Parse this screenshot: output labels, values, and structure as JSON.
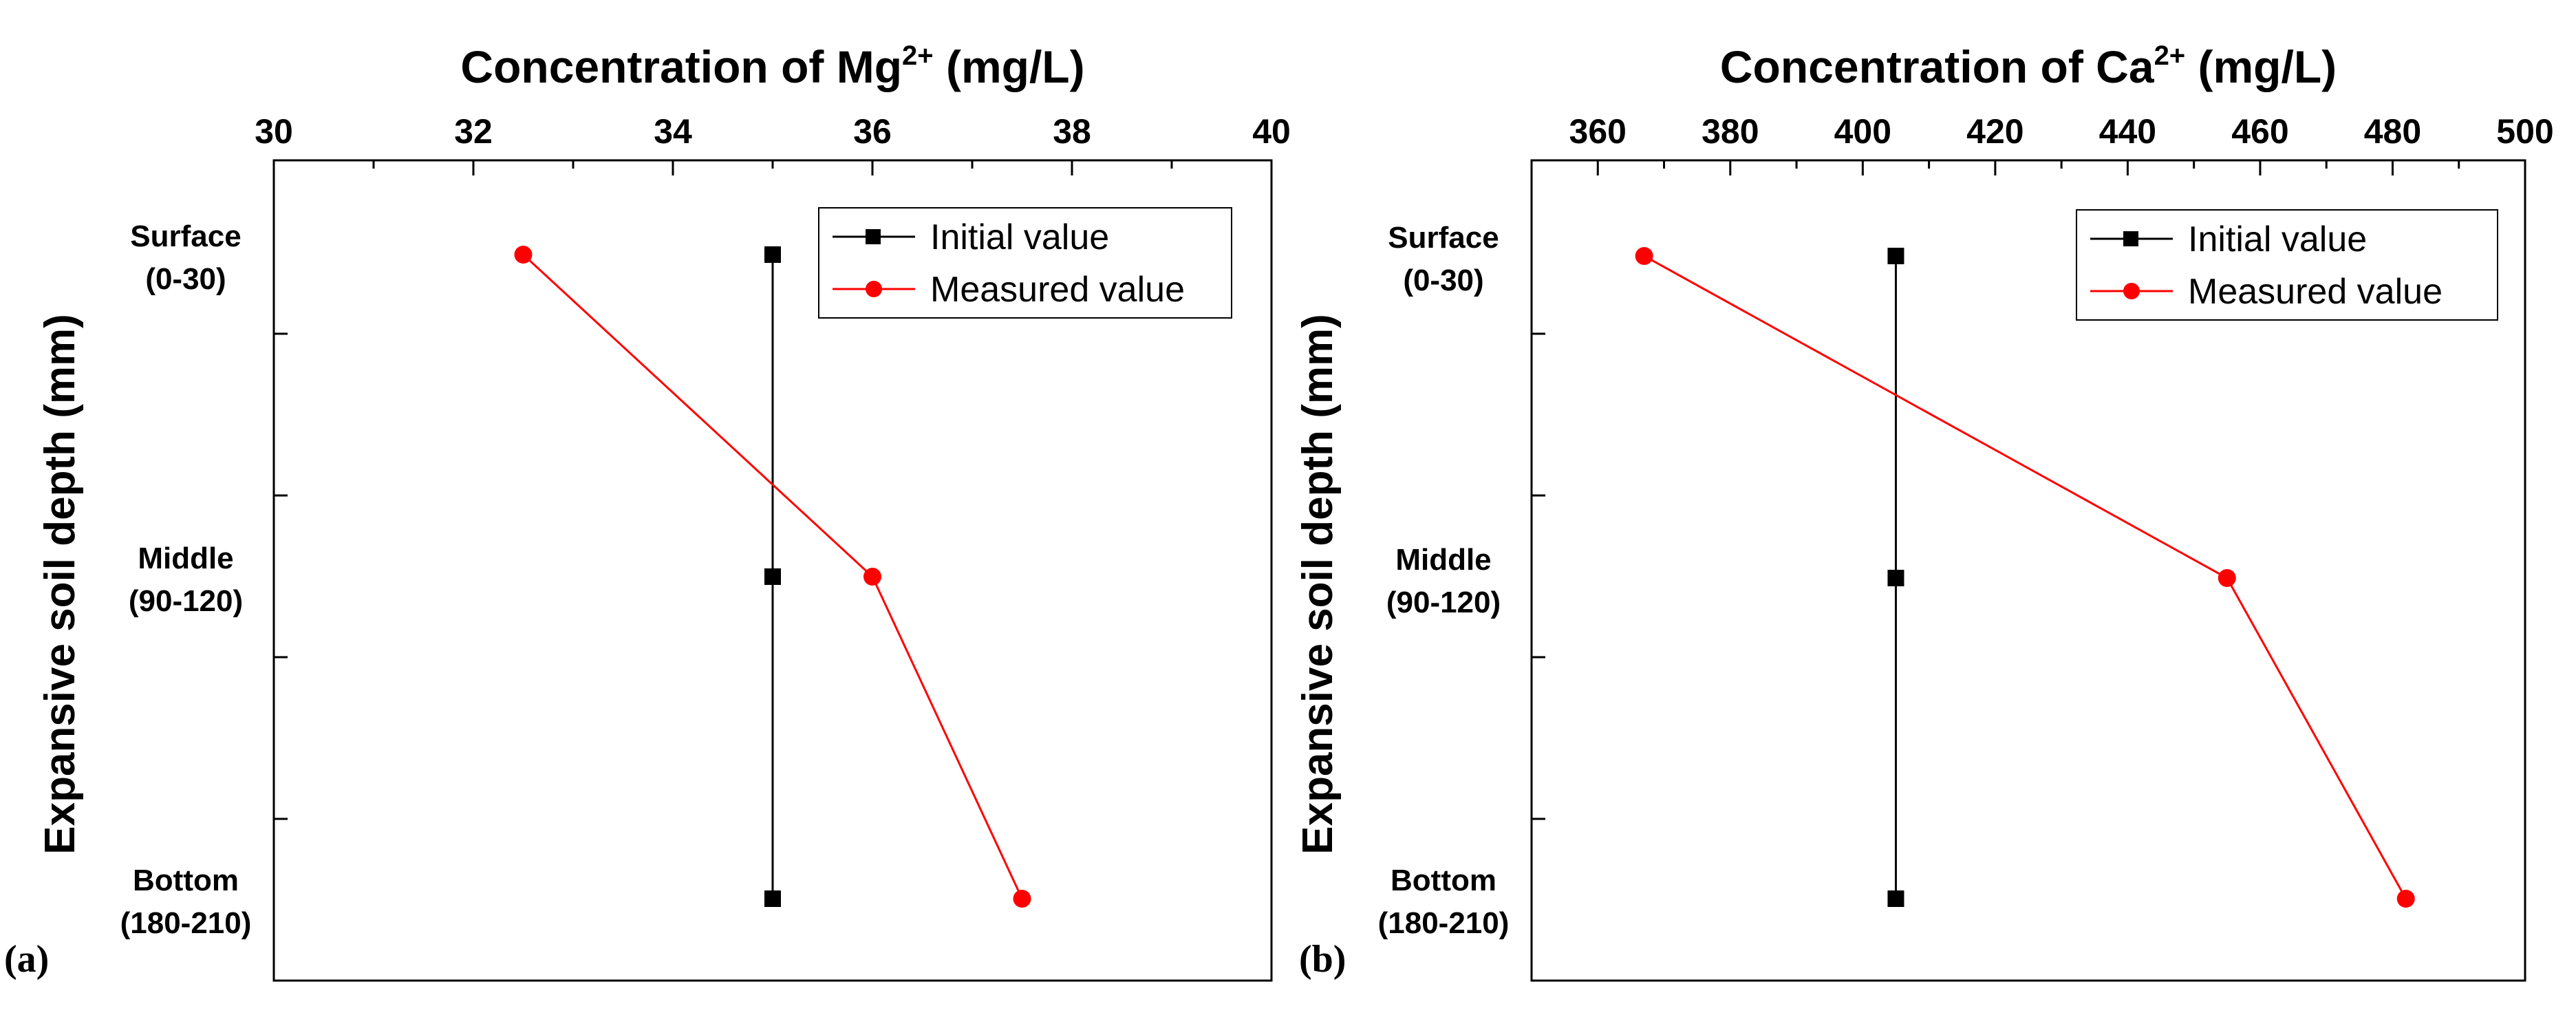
{
  "chart_data": [
    {
      "type": "line",
      "panel_label": "(a)",
      "title_main": "Concentration of Mg",
      "title_sup": "2+",
      "title_unit": " (mg/L)",
      "ylabel": "Expansive soil depth (mm)",
      "xlim": [
        30,
        40
      ],
      "xticks": [
        30,
        32,
        34,
        36,
        38,
        40
      ],
      "categories": [
        {
          "name": "Surface",
          "range": "(0-30)"
        },
        {
          "name": "Middle",
          "range": "(90-120)"
        },
        {
          "name": "Bottom",
          "range": "(180-210)"
        }
      ],
      "series": [
        {
          "name": "Initial value",
          "color": "#000000",
          "marker": "square",
          "values": [
            35,
            35,
            35
          ]
        },
        {
          "name": "Measured value",
          "color": "#ff0000",
          "marker": "circle",
          "values": [
            32.5,
            36.0,
            37.5
          ]
        }
      ],
      "legend_position": "top-right"
    },
    {
      "type": "line",
      "panel_label": "(b)",
      "title_main": "Concentration of Ca",
      "title_sup": "2+",
      "title_unit": " (mg/L)",
      "ylabel": "Expansive soil depth (mm)",
      "xlim": [
        350,
        500
      ],
      "xticks": [
        360,
        380,
        400,
        420,
        440,
        460,
        480,
        500
      ],
      "categories": [
        {
          "name": "Surface",
          "range": "(0-30)"
        },
        {
          "name": "Middle",
          "range": "(90-120)"
        },
        {
          "name": "Bottom",
          "range": "(180-210)"
        }
      ],
      "series": [
        {
          "name": "Initial value",
          "color": "#000000",
          "marker": "square",
          "values": [
            405,
            405,
            405
          ]
        },
        {
          "name": "Measured value",
          "color": "#ff0000",
          "marker": "circle",
          "values": [
            367,
            455,
            482
          ]
        }
      ],
      "legend_position": "top-right"
    }
  ]
}
